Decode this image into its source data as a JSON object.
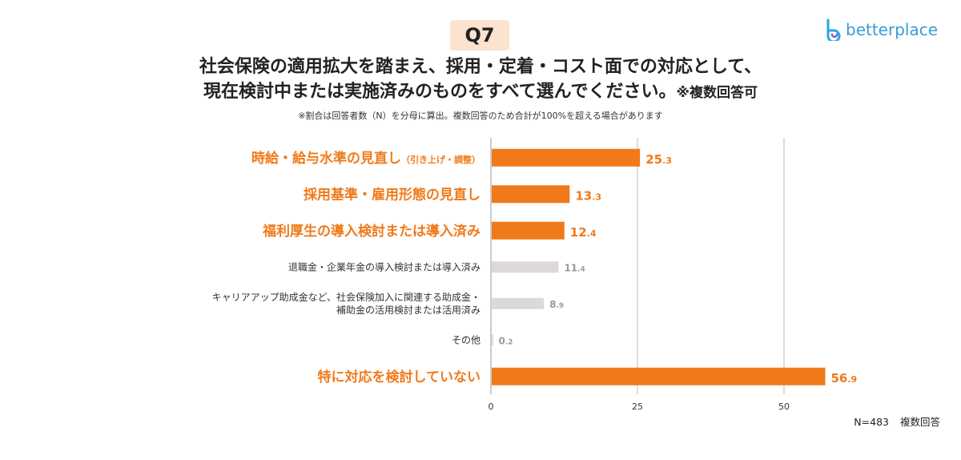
{
  "badge": "Q7",
  "logo": {
    "text": "betterplace",
    "icon": "betterplace-logo-icon",
    "color": "#3a9bd5"
  },
  "title": {
    "line1": "社会保険の適用拡大を踏まえ、採用・定着・コスト面での対応として、",
    "line2": "現在検討中または実施済みのものをすべて選んでください。",
    "note": "※複数回答可"
  },
  "subnote": "※割合は回答者数（N）を分母に算出。複数回答のため合計が100%を超える場合があります",
  "footer": {
    "n": "N=483",
    "type": "複数回答"
  },
  "chart_data": {
    "type": "bar",
    "orientation": "horizontal",
    "categories": [
      {
        "main": "時給・給与水準の見直し",
        "sub": "（引き上げ・調整）",
        "highlight": true
      },
      {
        "main": "採用基準・雇用形態の見直し",
        "sub": "",
        "highlight": true
      },
      {
        "main": "福利厚生の導入検討または導入済み",
        "sub": "",
        "highlight": true
      },
      {
        "main": "退職金・企業年金の導入検討または導入済み",
        "sub": "",
        "highlight": false
      },
      {
        "main": "キャリアアップ助成金など、社会保険加入に関連する助成金・",
        "main2": "補助金の活用検討または活用済み",
        "sub": "",
        "highlight": false
      },
      {
        "main": "その他",
        "sub": "",
        "highlight": false
      },
      {
        "main": "特に対応を検討していない",
        "sub": "",
        "highlight": true
      }
    ],
    "values": [
      25.3,
      13.3,
      12.4,
      11.4,
      8.9,
      0.2,
      56.9
    ],
    "xlim": [
      0,
      60
    ],
    "xticks": [
      0,
      25,
      50
    ],
    "grid": true,
    "colors": {
      "highlight": "#f07a1a",
      "muted": "#dcd8dc",
      "muted_label": "#9a9a9a"
    }
  }
}
